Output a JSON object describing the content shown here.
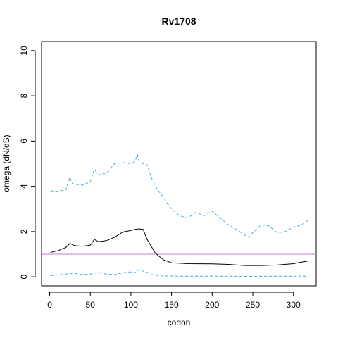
{
  "chart_data": {
    "type": "line",
    "title": "Rv1708",
    "xlabel": "codon",
    "ylabel": "omega (dN/dS)",
    "xlim": [
      -10,
      328
    ],
    "ylim": [
      -0.4,
      10.4
    ],
    "x_ticks": [
      0,
      50,
      100,
      150,
      200,
      250,
      300
    ],
    "y_ticks": [
      0,
      2,
      4,
      6,
      8,
      10
    ],
    "reference_line": {
      "y": 1,
      "color": "#c77cd1"
    },
    "series": [
      {
        "style": "solid",
        "color": "#000000",
        "x": [
          1,
          10,
          20,
          25,
          30,
          40,
          50,
          55,
          60,
          70,
          80,
          90,
          100,
          105,
          110,
          115,
          120,
          130,
          140,
          150,
          170,
          200,
          220,
          240,
          260,
          280,
          300,
          310,
          318
        ],
        "y": [
          1.08,
          1.15,
          1.3,
          1.48,
          1.38,
          1.35,
          1.4,
          1.65,
          1.55,
          1.6,
          1.75,
          1.98,
          2.05,
          2.1,
          2.12,
          2.1,
          1.65,
          1.05,
          0.75,
          0.62,
          0.58,
          0.57,
          0.55,
          0.5,
          0.5,
          0.52,
          0.58,
          0.65,
          0.7
        ]
      },
      {
        "style": "dashed",
        "color": "#45a9e0",
        "x": [
          1,
          10,
          20,
          25,
          28,
          30,
          40,
          50,
          55,
          60,
          70,
          75,
          80,
          90,
          100,
          105,
          108,
          110,
          115,
          120,
          125,
          130,
          140,
          150,
          160,
          170,
          180,
          190,
          200,
          210,
          220,
          230,
          240,
          245,
          250,
          255,
          260,
          270,
          280,
          290,
          300,
          310,
          318
        ],
        "y": [
          3.8,
          3.78,
          3.85,
          4.4,
          4.1,
          4.1,
          4.05,
          4.2,
          4.75,
          4.5,
          4.6,
          4.8,
          5.0,
          5.05,
          5.0,
          5.1,
          5.4,
          5.1,
          5.0,
          4.95,
          4.4,
          4.0,
          3.5,
          3.0,
          2.7,
          2.6,
          2.85,
          2.7,
          2.9,
          2.6,
          2.3,
          2.1,
          1.85,
          1.75,
          1.95,
          2.1,
          2.3,
          2.25,
          1.95,
          2.0,
          2.2,
          2.3,
          2.5
        ]
      },
      {
        "style": "dashed",
        "color": "#45a9e0",
        "x": [
          1,
          10,
          20,
          30,
          40,
          50,
          60,
          70,
          80,
          90,
          100,
          105,
          110,
          115,
          120,
          125,
          130,
          140,
          160,
          200,
          250,
          300,
          318
        ],
        "y": [
          0.05,
          0.08,
          0.12,
          0.16,
          0.1,
          0.12,
          0.2,
          0.12,
          0.1,
          0.18,
          0.22,
          0.18,
          0.32,
          0.25,
          0.2,
          0.1,
          0.06,
          0.04,
          0.03,
          0.03,
          0.02,
          0.03,
          0.03
        ]
      }
    ]
  }
}
